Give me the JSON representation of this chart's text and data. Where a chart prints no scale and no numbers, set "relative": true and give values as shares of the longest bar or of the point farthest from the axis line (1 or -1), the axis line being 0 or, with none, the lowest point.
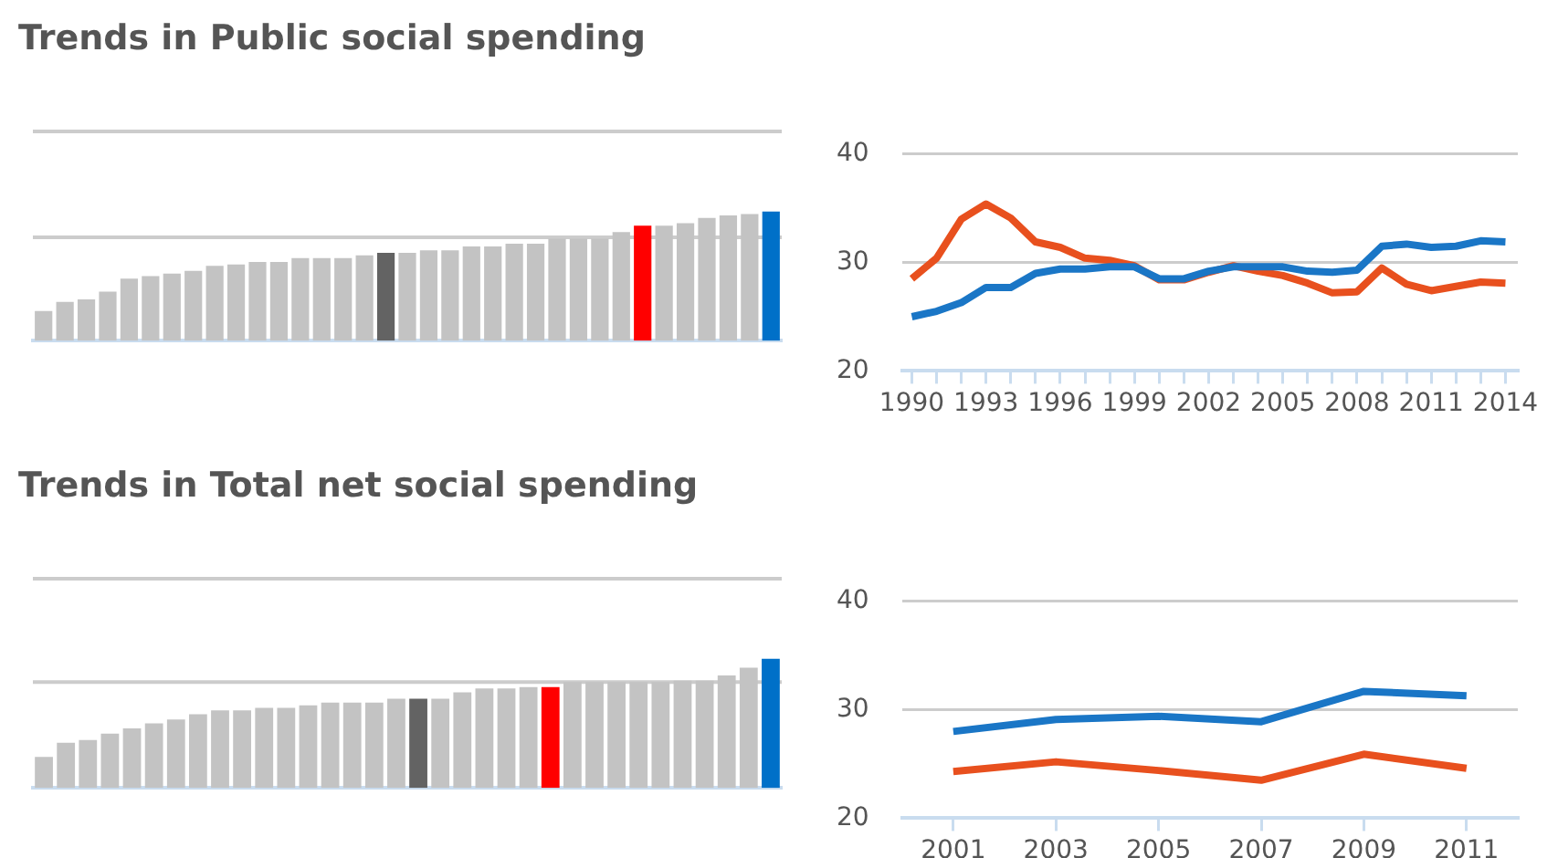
{
  "chart_data": [
    {
      "type": "bar",
      "title": "Trends in Public social spending",
      "categories": [
        null,
        null,
        null,
        null,
        null,
        null,
        null,
        null,
        null,
        null,
        null,
        null,
        null,
        null,
        null,
        null,
        null,
        null,
        null,
        null,
        null,
        null,
        null,
        null,
        null,
        null,
        null,
        null,
        null,
        null,
        null,
        null,
        null,
        null,
        null
      ],
      "values": [
        0.23,
        0.3,
        0.32,
        0.38,
        0.48,
        0.5,
        0.52,
        0.54,
        0.58,
        0.59,
        0.61,
        0.61,
        0.64,
        0.64,
        0.64,
        0.66,
        0.68,
        0.68,
        0.7,
        0.7,
        0.73,
        0.73,
        0.75,
        0.75,
        0.79,
        0.79,
        0.79,
        0.84,
        0.89,
        0.89,
        0.91,
        0.95,
        0.97,
        0.98,
        1
      ],
      "ref_lines": [
        {
          "axis": "y",
          "value": 0.8,
          "color": "#cccccc"
        }
      ],
      "colors": [
        "#c3c3c3",
        "#c3c3c3",
        "#c3c3c3",
        "#c3c3c3",
        "#c3c3c3",
        "#c3c3c3",
        "#c3c3c3",
        "#c3c3c3",
        "#c3c3c3",
        "#c3c3c3",
        "#c3c3c3",
        "#c3c3c3",
        "#c3c3c3",
        "#c3c3c3",
        "#c3c3c3",
        "#c3c3c3",
        "#636363",
        "#c3c3c3",
        "#c3c3c3",
        "#c3c3c3",
        "#c3c3c3",
        "#c3c3c3",
        "#c3c3c3",
        "#c3c3c3",
        "#c3c3c3",
        "#c3c3c3",
        "#c3c3c3",
        "#c3c3c3",
        "#ff0000",
        "#c3c3c3",
        "#c3c3c3",
        "#c3c3c3",
        "#c3c3c3",
        "#c3c3c3",
        "#0070c8"
      ],
      "relative": true,
      "legend": false
    },
    {
      "type": "line",
      "x": [
        1990,
        1991,
        1992,
        1993,
        1994,
        1995,
        1996,
        1997,
        1998,
        1999,
        2000,
        2001,
        2002,
        2003,
        2004,
        2005,
        2006,
        2007,
        2008,
        2009,
        2010,
        2011,
        2012,
        2013,
        2014
      ],
      "series": [
        {
          "color": "#1a76c6",
          "values": [
            25.0,
            25.5,
            26.3,
            27.7,
            27.7,
            29.0,
            29.4,
            29.4,
            29.6,
            29.6,
            28.5,
            28.5,
            29.2,
            29.6,
            29.6,
            29.6,
            29.2,
            29.1,
            29.3,
            31.5,
            31.7,
            31.4,
            31.5,
            32.0,
            31.9
          ]
        },
        {
          "color": "#e8501e",
          "values": [
            28.5,
            30.4,
            34.0,
            35.4,
            34.1,
            31.9,
            31.4,
            30.4,
            30.2,
            29.7,
            28.4,
            28.4,
            29.1,
            29.7,
            29.2,
            28.8,
            28.1,
            27.2,
            27.3,
            29.5,
            28.0,
            27.4,
            27.8,
            28.2,
            28.1
          ]
        }
      ],
      "xlim": [
        1989.6,
        2014.5
      ],
      "xticks": [
        1990,
        {
          "value": 1991,
          "label": null
        },
        {
          "value": 1992,
          "label": null
        },
        1993,
        {
          "value": 1994,
          "label": null
        },
        {
          "value": 1995,
          "label": null
        },
        1996,
        {
          "value": 1997,
          "label": null
        },
        {
          "value": 1998,
          "label": null
        },
        1999,
        {
          "value": 2000,
          "label": null
        },
        {
          "value": 2001,
          "label": null
        },
        2002,
        {
          "value": 2003,
          "label": null
        },
        {
          "value": 2004,
          "label": null
        },
        2005,
        {
          "value": 2006,
          "label": null
        },
        {
          "value": 2007,
          "label": null
        },
        2008,
        {
          "value": 2009,
          "label": null
        },
        {
          "value": 2010,
          "label": null
        },
        2011,
        {
          "value": 2012,
          "label": null
        },
        {
          "value": 2013,
          "label": null
        },
        2014
      ],
      "ylim": [
        20,
        40
      ],
      "yticks": [
        20,
        30,
        40
      ],
      "grid": "y",
      "legend": false,
      "marker": "none",
      "line_style": "solid"
    },
    {
      "type": "bar",
      "title": "Trends in Total net social spending",
      "categories": [
        null,
        null,
        null,
        null,
        null,
        null,
        null,
        null,
        null,
        null,
        null,
        null,
        null,
        null,
        null,
        null,
        null,
        null,
        null,
        null,
        null,
        null,
        null,
        null,
        null,
        null,
        null,
        null,
        null,
        null,
        null,
        null,
        null,
        null
      ],
      "values": [
        0.24,
        0.35,
        0.37,
        0.42,
        0.46,
        0.5,
        0.53,
        0.57,
        0.6,
        0.6,
        0.62,
        0.62,
        0.64,
        0.66,
        0.66,
        0.66,
        0.69,
        0.69,
        0.69,
        0.74,
        0.77,
        0.77,
        0.78,
        0.78,
        0.82,
        0.82,
        0.82,
        0.82,
        0.82,
        0.83,
        0.83,
        0.87,
        0.93,
        1
      ],
      "ref_lines": [
        {
          "axis": "y",
          "value": 0.82,
          "color": "#cccccc"
        }
      ],
      "colors": [
        "#c3c3c3",
        "#c3c3c3",
        "#c3c3c3",
        "#c3c3c3",
        "#c3c3c3",
        "#c3c3c3",
        "#c3c3c3",
        "#c3c3c3",
        "#c3c3c3",
        "#c3c3c3",
        "#c3c3c3",
        "#c3c3c3",
        "#c3c3c3",
        "#c3c3c3",
        "#c3c3c3",
        "#c3c3c3",
        "#c3c3c3",
        "#636363",
        "#c3c3c3",
        "#c3c3c3",
        "#c3c3c3",
        "#c3c3c3",
        "#c3c3c3",
        "#ff0000",
        "#c3c3c3",
        "#c3c3c3",
        "#c3c3c3",
        "#c3c3c3",
        "#c3c3c3",
        "#c3c3c3",
        "#c3c3c3",
        "#c3c3c3",
        "#c3c3c3",
        "#0070c8"
      ],
      "relative": true,
      "legend": false
    },
    {
      "type": "line",
      "x": [
        2001,
        2003,
        2005,
        2007,
        2009,
        2011
      ],
      "series": [
        {
          "color": "#1a76c6",
          "values": [
            28.0,
            29.1,
            29.4,
            28.9,
            31.7,
            31.3
          ]
        },
        {
          "color": "#e8501e",
          "values": [
            24.3,
            25.2,
            24.4,
            23.5,
            25.9,
            24.6
          ]
        }
      ],
      "xlim": [
        2000,
        2012
      ],
      "xticks": [
        2001,
        2003,
        2005,
        2007,
        2009,
        2011
      ],
      "ylim": [
        20,
        40
      ],
      "yticks": [
        20,
        30,
        40
      ],
      "grid": "y",
      "legend": false,
      "marker": "none",
      "line_style": "solid"
    }
  ]
}
